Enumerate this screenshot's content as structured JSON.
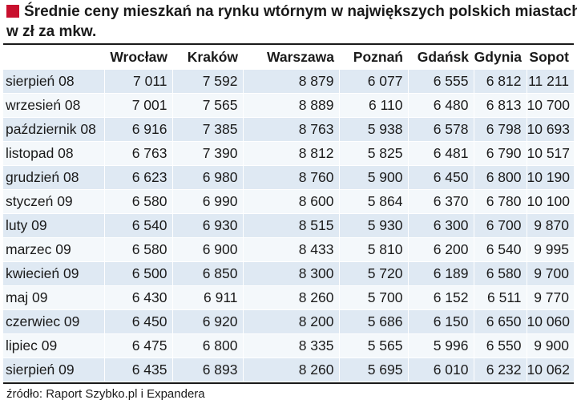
{
  "accent_color": "#c8102e",
  "row_colors": [
    "#dfe9f3",
    "#f4f8fb"
  ],
  "title_line1": "Średnie ceny mieszkań na rynku wtórnym w największych polskich miastach",
  "title_line2": "w zł za mkw.",
  "source": "źródło: Raport Szybko.pl i Expandera",
  "chart_data": {
    "type": "table",
    "title": "Średnie ceny mieszkań na rynku wtórnym w największych polskich miastach w zł za mkw.",
    "columns": [
      "Wrocław",
      "Kraków",
      "Warszawa",
      "Poznań",
      "Gdańsk",
      "Gdynia",
      "Sopot"
    ],
    "rows": [
      {
        "label": "sierpień 08",
        "values": [
          "7 011",
          "7 592",
          "8 879",
          "6 077",
          "6 555",
          "6 812",
          "11 211"
        ]
      },
      {
        "label": "wrzesień 08",
        "values": [
          "7 001",
          "7 565",
          "8 889",
          "6 110",
          "6 480",
          "6 813",
          "10 700"
        ]
      },
      {
        "label": "październik 08",
        "values": [
          "6 916",
          "7 385",
          "8 763",
          "5 938",
          "6 578",
          "6 798",
          "10 693"
        ]
      },
      {
        "label": "listopad 08",
        "values": [
          "6 763",
          "7 390",
          "8 812",
          "5 825",
          "6 481",
          "6 790",
          "10 517"
        ]
      },
      {
        "label": "grudzień 08",
        "values": [
          "6 623",
          "6 980",
          "8 760",
          "5 900",
          "6 450",
          "6 800",
          "10 190"
        ]
      },
      {
        "label": "styczeń 09",
        "values": [
          "6 580",
          "6 990",
          "8 600",
          "5 864",
          "6 370",
          "6 780",
          "10 100"
        ]
      },
      {
        "label": "luty 09",
        "values": [
          "6 540",
          "6 930",
          "8 515",
          "5 930",
          "6 300",
          "6 700",
          "9 870"
        ]
      },
      {
        "label": "marzec 09",
        "values": [
          "6 580",
          "6 900",
          "8 433",
          "5 810",
          "6 200",
          "6 540",
          "9 995"
        ]
      },
      {
        "label": "kwiecień 09",
        "values": [
          "6 500",
          "6 850",
          "8 300",
          "5 720",
          "6 189",
          "6 580",
          "9 700"
        ]
      },
      {
        "label": "maj 09",
        "values": [
          "6 430",
          "6 911",
          "8 260",
          "5 700",
          "6 152",
          "6 511",
          "9 770"
        ]
      },
      {
        "label": "czerwiec 09",
        "values": [
          "6 450",
          "6 920",
          "8 200",
          "5 686",
          "6 150",
          "6 650",
          "10 060"
        ]
      },
      {
        "label": "lipiec 09",
        "values": [
          "6 475",
          "6 800",
          "8 335",
          "5 565",
          "5 996",
          "6 550",
          "9 900"
        ]
      },
      {
        "label": "sierpień 09",
        "values": [
          "6 435",
          "6 893",
          "8 260",
          "5 695",
          "6 010",
          "6 232",
          "10 062"
        ]
      }
    ]
  }
}
